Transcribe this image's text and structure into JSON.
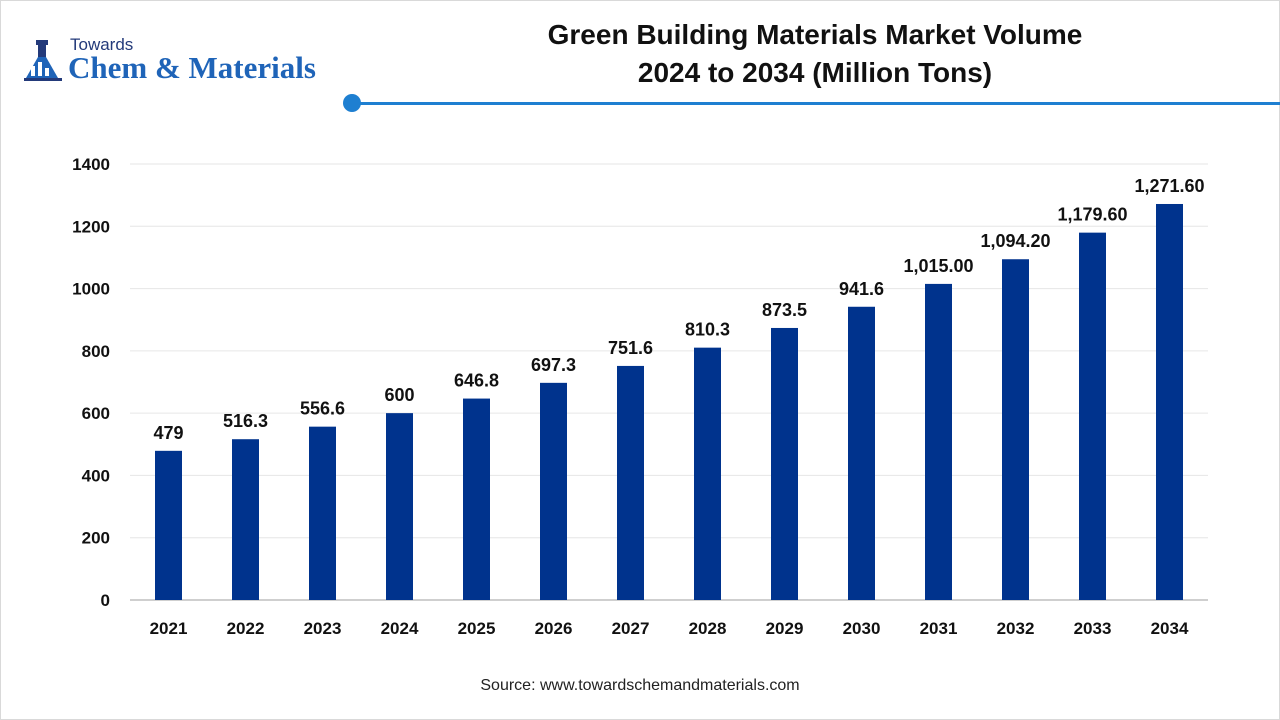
{
  "logo": {
    "small": "Towards",
    "big": "Chem & Materials"
  },
  "title": {
    "line1": "Green Building Materials Market Volume",
    "line2": "2024 to 2034 (Million Tons)"
  },
  "source": "Source: www.towardschemandmaterials.com",
  "colors": {
    "bar": "#00338d",
    "accent_line": "#1e7fd1",
    "grid": "#e6e6e6",
    "axis": "#bfbfbf"
  },
  "chart_data": {
    "type": "bar",
    "title": "Green Building Materials Market Volume 2024 to 2034 (Million Tons)",
    "xlabel": "",
    "ylabel": "",
    "categories": [
      "2021",
      "2022",
      "2023",
      "2024",
      "2025",
      "2026",
      "2027",
      "2028",
      "2029",
      "2030",
      "2031",
      "2032",
      "2033",
      "2034"
    ],
    "values": [
      479,
      516.3,
      556.6,
      600,
      646.8,
      697.3,
      751.6,
      810.3,
      873.5,
      941.6,
      1015.0,
      1094.2,
      1179.6,
      1271.6
    ],
    "data_labels": [
      "479",
      "516.3",
      "556.6",
      "600",
      "646.8",
      "697.3",
      "751.6",
      "810.3",
      "873.5",
      "941.6",
      "1,015.00",
      "1,094.20",
      "1,179.60",
      "1,271.60"
    ],
    "ylim": [
      0,
      1400
    ],
    "yticks": [
      "0",
      "200",
      "400",
      "600",
      "800",
      "1000",
      "1200",
      "1400"
    ],
    "grid": true,
    "legend": "none"
  }
}
